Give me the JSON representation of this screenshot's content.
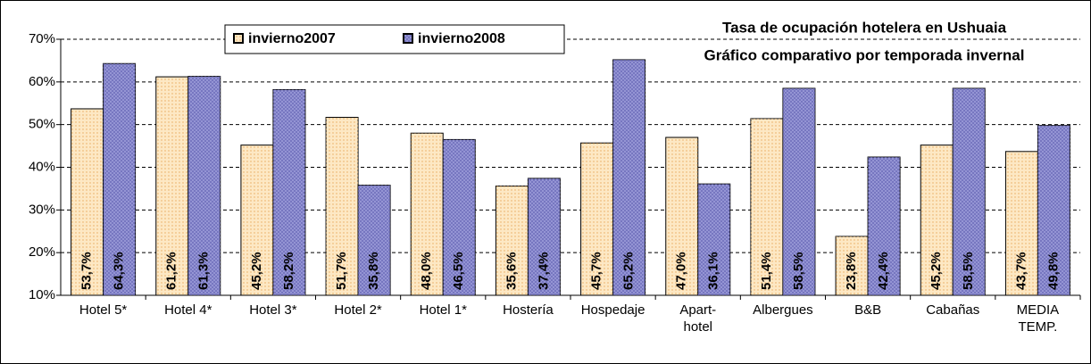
{
  "chart_data": {
    "type": "bar",
    "title": "Tasa de ocupación hotelera en Ushuaia",
    "subtitle": "Gráfico comparativo por temporada invernal",
    "categories": [
      "Hotel 5*",
      "Hotel 4*",
      "Hotel 3*",
      "Hotel 2*",
      "Hotel 1*",
      "Hostería",
      "Hospedaje",
      "Apart-\nhotel",
      "Albergues",
      "B&B",
      "Cabañas",
      "MEDIA\nTEMP."
    ],
    "series": [
      {
        "name": "invierno2007",
        "color": "#fde8c4",
        "values": [
          53.7,
          61.2,
          45.2,
          51.7,
          48.0,
          35.6,
          45.7,
          47.0,
          51.4,
          23.8,
          45.2,
          43.7
        ],
        "value_labels": [
          "53,7%",
          "61,2%",
          "45,2%",
          "51,7%",
          "48,0%",
          "35,6%",
          "45,7%",
          "47,0%",
          "51,4%",
          "23,8%",
          "45,2%",
          "43,7%"
        ]
      },
      {
        "name": "invierno2008",
        "color": "#9a9ad8",
        "values": [
          64.3,
          61.3,
          58.2,
          35.8,
          46.5,
          37.4,
          65.2,
          36.1,
          58.5,
          42.4,
          58.5,
          49.8
        ],
        "value_labels": [
          "64,3%",
          "61,3%",
          "58,2%",
          "35,8%",
          "46,5%",
          "37,4%",
          "65,2%",
          "36,1%",
          "58,5%",
          "42,4%",
          "58,5%",
          "49,8%"
        ]
      }
    ],
    "ylim": [
      10,
      70
    ],
    "yticks": [
      {
        "value": 10,
        "label": "10%"
      },
      {
        "value": 20,
        "label": "20%"
      },
      {
        "value": 30,
        "label": "30%"
      },
      {
        "value": 40,
        "label": "40%"
      },
      {
        "value": 50,
        "label": "50%"
      },
      {
        "value": 60,
        "label": "60%"
      },
      {
        "value": 70,
        "label": "70%"
      }
    ],
    "grid": true
  }
}
